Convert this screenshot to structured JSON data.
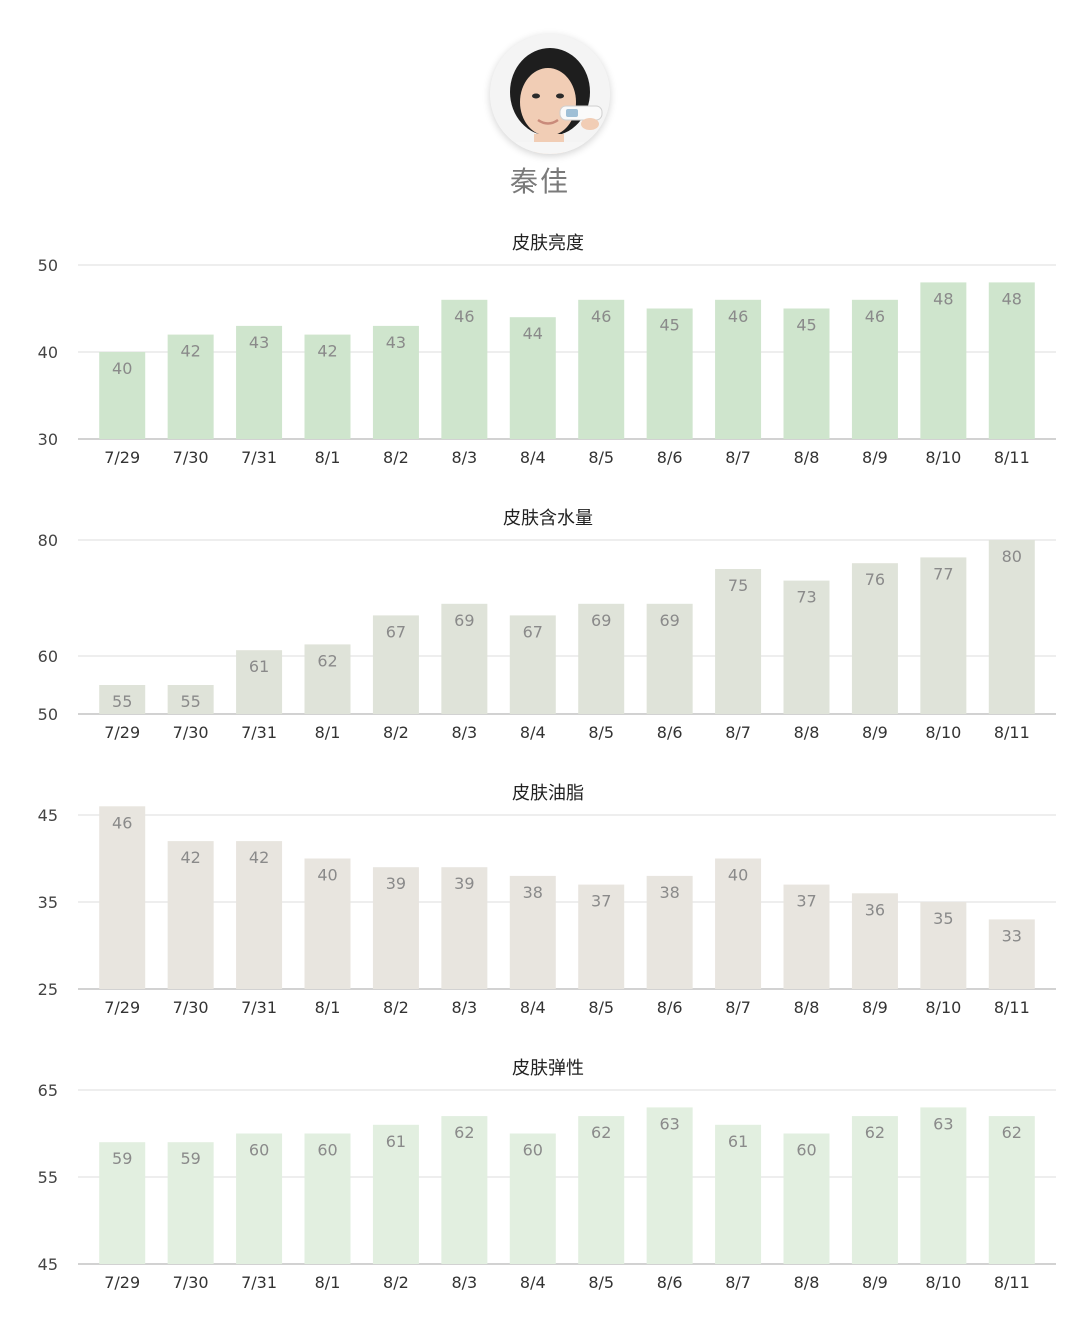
{
  "profile": {
    "name": "秦佳"
  },
  "charts": [
    {
      "title": "皮肤亮度",
      "color": "#cfe5cd",
      "chart_data": {
        "type": "bar",
        "title": "皮肤亮度",
        "categories": [
          "7/29",
          "7/30",
          "7/31",
          "8/1",
          "8/2",
          "8/3",
          "8/4",
          "8/5",
          "8/6",
          "8/7",
          "8/8",
          "8/9",
          "8/10",
          "8/11"
        ],
        "values": [
          40,
          42,
          43,
          42,
          43,
          46,
          44,
          46,
          45,
          46,
          45,
          46,
          48,
          48
        ],
        "ylim": [
          30,
          50
        ],
        "yticks": [
          30,
          40,
          50
        ],
        "grid": true
      }
    },
    {
      "title": "皮肤含水量",
      "color": "#dfe3d9",
      "chart_data": {
        "type": "bar",
        "title": "皮肤含水量",
        "categories": [
          "7/29",
          "7/30",
          "7/31",
          "8/1",
          "8/2",
          "8/3",
          "8/4",
          "8/5",
          "8/6",
          "8/7",
          "8/8",
          "8/9",
          "8/10",
          "8/11"
        ],
        "values": [
          55,
          55,
          61,
          62,
          67,
          69,
          67,
          69,
          69,
          75,
          73,
          76,
          77,
          80
        ],
        "ylim": [
          50,
          80
        ],
        "yticks": [
          50,
          60,
          80
        ],
        "grid": true
      }
    },
    {
      "title": "皮肤油脂",
      "color": "#e8e5df",
      "chart_data": {
        "type": "bar",
        "title": "皮肤油脂",
        "categories": [
          "7/29",
          "7/30",
          "7/31",
          "8/1",
          "8/2",
          "8/3",
          "8/4",
          "8/5",
          "8/6",
          "8/7",
          "8/8",
          "8/9",
          "8/10",
          "8/11"
        ],
        "values": [
          46,
          42,
          42,
          40,
          39,
          39,
          38,
          37,
          38,
          40,
          37,
          36,
          35,
          33
        ],
        "ylim": [
          25,
          45
        ],
        "yticks": [
          25,
          35,
          45
        ],
        "grid": true
      }
    },
    {
      "title": "皮肤弹性",
      "color": "#e2efe0",
      "chart_data": {
        "type": "bar",
        "title": "皮肤弹性",
        "categories": [
          "7/29",
          "7/30",
          "7/31",
          "8/1",
          "8/2",
          "8/3",
          "8/4",
          "8/5",
          "8/6",
          "8/7",
          "8/8",
          "8/9",
          "8/10",
          "8/11"
        ],
        "values": [
          59,
          59,
          60,
          60,
          61,
          62,
          60,
          62,
          63,
          61,
          60,
          62,
          63,
          62
        ],
        "ylim": [
          45,
          65
        ],
        "yticks": [
          45,
          55,
          65
        ],
        "grid": true
      }
    }
  ]
}
